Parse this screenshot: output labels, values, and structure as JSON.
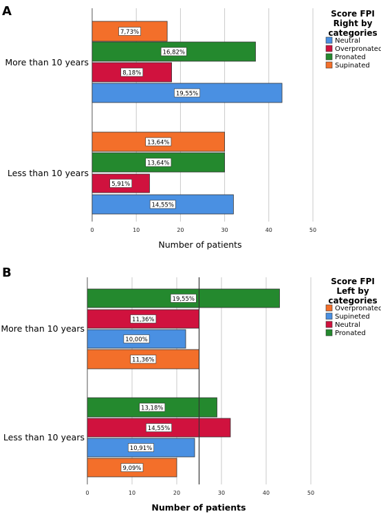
{
  "panels": [
    {
      "letter": "A",
      "chart_data": {
        "type": "bar",
        "orientation": "horizontal",
        "categories": [
          "More than 10 years",
          "Less than 10 years"
        ],
        "series": [
          {
            "name": "Supinated",
            "color": "#F36F2A",
            "values": [
              17,
              30
            ],
            "labels": [
              "7,73%",
              "13,64%"
            ]
          },
          {
            "name": "Pronated",
            "color": "#24892E",
            "values": [
              37,
              30
            ],
            "labels": [
              "16,82%",
              "13,64%"
            ]
          },
          {
            "name": "Overpronated",
            "color": "#D0123E",
            "values": [
              18,
              13
            ],
            "labels": [
              "8,18%",
              "5,91%"
            ]
          },
          {
            "name": "Neutral",
            "color": "#4A90E2",
            "values": [
              43,
              32
            ],
            "labels": [
              "19,55%",
              "14,55%"
            ]
          }
        ],
        "xlabel": "Number of patients",
        "xlim": [
          0,
          50
        ],
        "xticks": [
          0,
          10,
          20,
          30,
          40,
          50
        ],
        "grid": true,
        "legend": {
          "title": [
            "Score FPI",
            "Right by",
            "categories"
          ],
          "placement": "right",
          "items": [
            "Neutral",
            "Overpronated",
            "Pronated",
            "Supinated"
          ],
          "colors": [
            "#4A90E2",
            "#D0123E",
            "#24892E",
            "#F36F2A"
          ]
        }
      }
    },
    {
      "letter": "B",
      "chart_data": {
        "type": "bar",
        "orientation": "horizontal",
        "categories": [
          "More than 10 years",
          "Less than 10 years"
        ],
        "series": [
          {
            "name": "Pronated",
            "color": "#24892E",
            "values": [
              43,
              29
            ],
            "labels": [
              "19,55%",
              "13,18%"
            ]
          },
          {
            "name": "Neutral",
            "color": "#D0123E",
            "values": [
              25,
              32
            ],
            "labels": [
              "11,36%",
              "14,55%"
            ]
          },
          {
            "name": "Supineted",
            "color": "#4A90E2",
            "values": [
              22,
              24
            ],
            "labels": [
              "10,00%",
              "10,91%"
            ]
          },
          {
            "name": "Overpronated",
            "color": "#F36F2A",
            "values": [
              25,
              20
            ],
            "labels": [
              "11,36%",
              "9,09%"
            ]
          }
        ],
        "xlabel": "Number of patients",
        "xlim": [
          0,
          50
        ],
        "xticks": [
          0,
          10,
          20,
          30,
          40,
          50
        ],
        "grid": true,
        "reference_line": 25,
        "legend": {
          "title": [
            "Score FPI",
            "Left by",
            "categories"
          ],
          "placement": "right",
          "items": [
            "Overpronated",
            "Supineted",
            "Neutral",
            "Pronated"
          ],
          "colors": [
            "#F36F2A",
            "#4A90E2",
            "#D0123E",
            "#24892E"
          ]
        }
      }
    }
  ]
}
